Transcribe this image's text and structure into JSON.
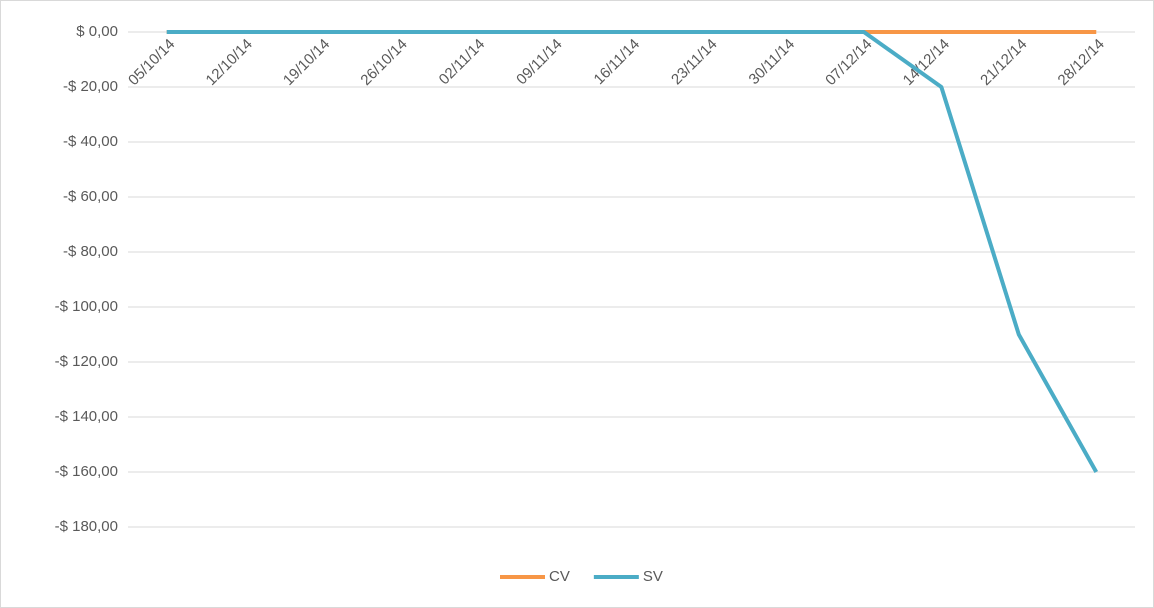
{
  "chart_data": {
    "type": "line",
    "categories": [
      "05/10/14",
      "12/10/14",
      "19/10/14",
      "26/10/14",
      "02/11/14",
      "09/11/14",
      "16/11/14",
      "23/11/14",
      "30/11/14",
      "07/12/14",
      "14/12/14",
      "21/12/14",
      "28/12/14"
    ],
    "series": [
      {
        "name": "CV",
        "color": "#f79646",
        "values": [
          0,
          0,
          0,
          0,
          0,
          0,
          0,
          0,
          0,
          0,
          0,
          0,
          0
        ]
      },
      {
        "name": "SV",
        "color": "#4bacc6",
        "values": [
          0,
          0,
          0,
          0,
          0,
          0,
          0,
          0,
          0,
          0,
          -20,
          -110,
          -160
        ]
      }
    ],
    "ylim": [
      -180,
      0
    ],
    "yticks": [
      {
        "value": 0,
        "label": "$ 0,00"
      },
      {
        "value": -20,
        "label": "-$ 20,00"
      },
      {
        "value": -40,
        "label": "-$ 40,00"
      },
      {
        "value": -60,
        "label": "-$ 60,00"
      },
      {
        "value": -80,
        "label": "-$ 80,00"
      },
      {
        "value": -100,
        "label": "-$ 100,00"
      },
      {
        "value": -120,
        "label": "-$ 120,00"
      },
      {
        "value": -140,
        "label": "-$ 140,00"
      },
      {
        "value": -160,
        "label": "-$ 160,00"
      },
      {
        "value": -180,
        "label": "-$ 180,00"
      }
    ],
    "grid": true,
    "legend": "bottom"
  }
}
